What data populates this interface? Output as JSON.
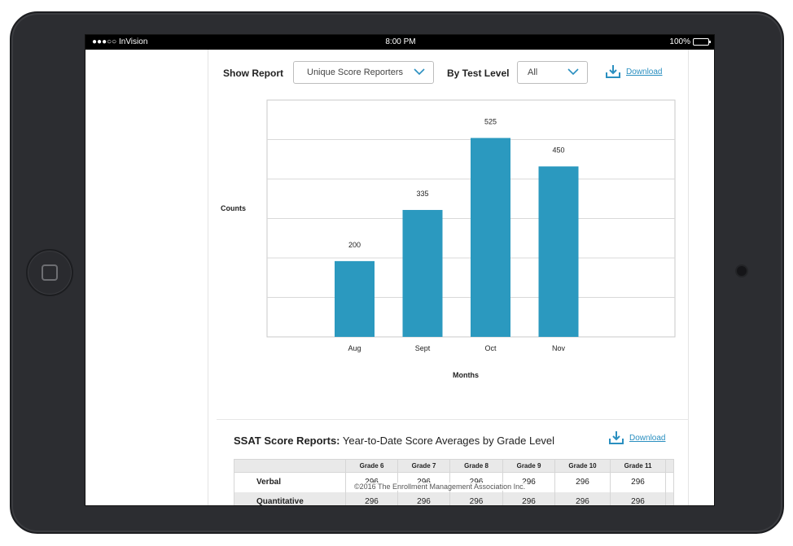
{
  "status": {
    "carrier": "●●●○○ InVision",
    "time": "8:00 PM",
    "battery": "100%"
  },
  "controls": {
    "show_report_label": "Show Report",
    "report_select_value": "Unique Score Reporters",
    "test_level_label": "By Test Level",
    "test_level_value": "All",
    "download_label": "Download"
  },
  "chart_data": {
    "type": "bar",
    "categories": [
      "Aug",
      "Sept",
      "Oct",
      "Nov"
    ],
    "values": [
      200,
      335,
      525,
      450
    ],
    "xlabel": "Months",
    "ylabel": "Counts",
    "ylim": [
      0,
      625
    ],
    "grid": true,
    "bar_color": "#2b99bf"
  },
  "table_section": {
    "title_bold": "SSAT Score Reports:",
    "title_rest": " Year-to-Date Score Averages by Grade Level",
    "download_label": "Download",
    "columns": [
      "Grade 6",
      "Grade 7",
      "Grade 8",
      "Grade 9",
      "Grade 10",
      "Grade 11"
    ],
    "rows": [
      {
        "label": "Verbal",
        "values": [
          "296",
          "296",
          "296",
          "296",
          "296",
          "296"
        ]
      },
      {
        "label": "Quantitative",
        "values": [
          "296",
          "296",
          "296",
          "296",
          "296",
          "296"
        ]
      }
    ]
  },
  "footer_note": "©2016 The Enrollment Management Association Inc."
}
